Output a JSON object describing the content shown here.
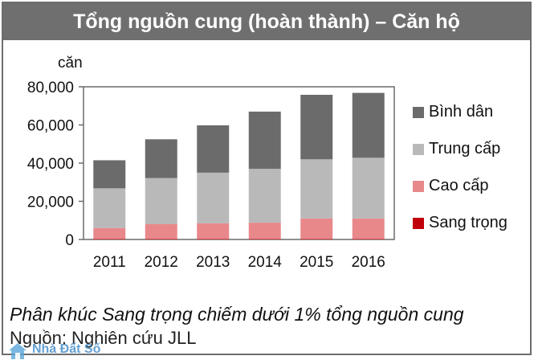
{
  "title": "Tổng nguồn cung (hoàn thành) – Căn hộ",
  "note": "Phân khúc Sang trọng chiếm dưới 1% tổng nguồn cung",
  "source": "Nguồn: Nghiên cứu JLL",
  "watermark": "Nhà Đất Số",
  "colors": {
    "title_bg": "#6f6f6f",
    "frame": "#6d6d6d"
  },
  "chart_data": {
    "type": "bar",
    "stacked": true,
    "title": "Tổng nguồn cung (hoàn thành) – Căn hộ",
    "ylabel": "căn",
    "xlabel": "",
    "ylim": [
      0,
      80000
    ],
    "yticks": [
      0,
      20000,
      40000,
      60000,
      80000
    ],
    "ytick_labels": [
      "0",
      "20,000",
      "40,000",
      "60,000",
      "80,000"
    ],
    "categories": [
      "2011",
      "2012",
      "2013",
      "2014",
      "2015",
      "2016"
    ],
    "grid": false,
    "legend_position": "right",
    "series": [
      {
        "name": "Sang trọng",
        "color": "#c0000b",
        "values": [
          200,
          200,
          200,
          200,
          200,
          200
        ]
      },
      {
        "name": "Cao cấp",
        "color": "#e8888b",
        "values": [
          5800,
          7800,
          8300,
          8600,
          10800,
          10800
        ]
      },
      {
        "name": "Trung cấp",
        "color": "#b9b9b9",
        "values": [
          20800,
          24200,
          26500,
          28200,
          31000,
          31800
        ]
      },
      {
        "name": "Bình dân",
        "color": "#6b6b6b",
        "values": [
          14700,
          20300,
          24800,
          30000,
          33800,
          34000
        ]
      }
    ],
    "legend_order": [
      "Bình dân",
      "Trung cấp",
      "Cao cấp",
      "Sang trọng"
    ]
  }
}
